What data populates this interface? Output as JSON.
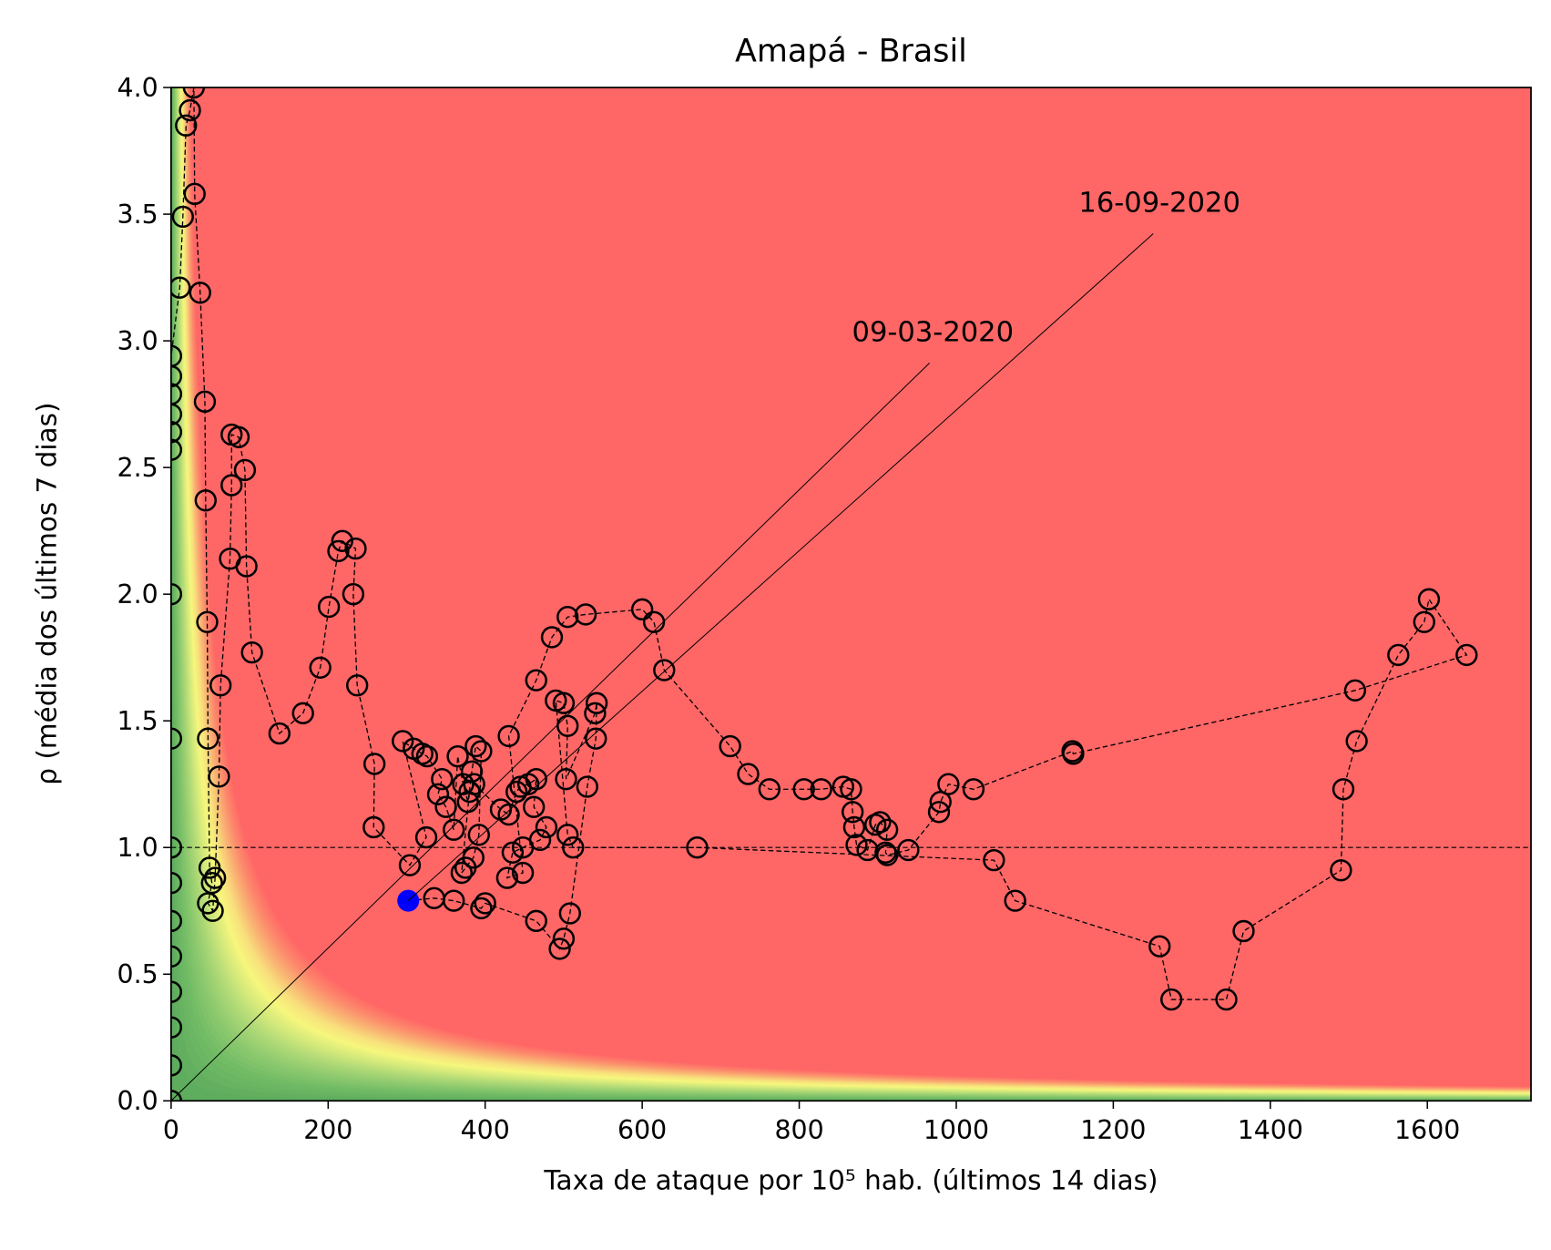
{
  "chart_data": {
    "type": "line",
    "title": "Amapá - Brasil",
    "xlabel": "Taxa de ataque por 10⁵ hab. (últimos 14 dias)",
    "ylabel": "ρ (média dos últimos 7 dias)",
    "xlim": [
      0,
      1732
    ],
    "ylim": [
      0,
      4
    ],
    "xticks": [
      0,
      200,
      400,
      600,
      800,
      1000,
      1200,
      1400,
      1600
    ],
    "yticks": [
      {
        "value": 0,
        "label": "0.0"
      },
      0.5,
      {
        "value": 1,
        "label": "1.0"
      },
      1.5,
      {
        "value": 2,
        "label": "2.0"
      },
      2.5,
      {
        "value": 3,
        "label": "3.0"
      },
      3.5,
      {
        "value": 4,
        "label": "4.0"
      }
    ],
    "hline": 1,
    "last_point_color": "#0000ff",
    "series": [
      {
        "color": "#000000",
        "x": [
          0,
          0,
          0,
          0,
          0,
          0,
          0,
          0,
          0,
          0,
          0,
          0,
          0,
          0,
          0,
          0,
          11,
          15,
          19,
          24,
          29,
          30,
          37,
          43,
          44,
          46,
          47,
          49,
          52,
          47,
          53,
          56,
          61,
          63,
          75,
          77,
          77,
          86,
          94,
          96,
          103,
          138,
          168,
          190,
          201,
          213,
          218,
          235,
          232,
          237,
          259,
          258,
          304,
          325,
          295,
          309,
          320,
          326,
          345,
          340,
          350,
          360,
          365,
          372,
          378,
          383,
          388,
          395,
          392,
          385,
          375,
          370,
          380,
          386,
          420,
          430,
          440,
          445,
          455,
          465,
          462,
          478,
          470,
          448,
          435,
          428,
          448,
          430,
          465,
          485,
          505,
          528,
          600,
          615,
          628,
          712,
          735,
          762,
          806,
          828,
          856,
          866,
          868,
          870,
          873,
          887,
          897,
          903,
          912,
          910,
          912,
          939,
          978,
          980,
          990,
          1022,
          1148,
          1149,
          1508,
          1650,
          1602,
          1596,
          1563,
          1510,
          1493,
          1490,
          1366,
          1344,
          1274,
          1259,
          1075,
          1048,
          670,
          512,
          505,
          490,
          500,
          505,
          503,
          540,
          542,
          541,
          530,
          508,
          500,
          495,
          465,
          400,
          395,
          360,
          335,
          302
        ],
        "values": [
          0,
          0.14,
          0.29,
          0.43,
          0.57,
          0.71,
          0.86,
          1.0,
          1.43,
          2.0,
          2.57,
          2.64,
          2.71,
          2.79,
          2.86,
          2.94,
          3.21,
          3.49,
          3.85,
          3.91,
          4.0,
          3.58,
          3.19,
          2.76,
          2.37,
          1.89,
          1.43,
          0.92,
          0.86,
          0.78,
          0.75,
          0.88,
          1.28,
          1.64,
          2.14,
          2.43,
          2.63,
          2.62,
          2.49,
          2.11,
          1.77,
          1.45,
          1.53,
          1.71,
          1.95,
          2.17,
          2.21,
          2.18,
          2.0,
          1.64,
          1.33,
          1.08,
          0.93,
          1.04,
          1.42,
          1.39,
          1.37,
          1.36,
          1.27,
          1.21,
          1.16,
          1.07,
          1.36,
          1.25,
          1.18,
          1.3,
          1.4,
          1.38,
          1.05,
          0.96,
          0.92,
          0.9,
          1.22,
          1.25,
          1.15,
          1.13,
          1.22,
          1.24,
          1.25,
          1.27,
          1.16,
          1.08,
          1.03,
          1.0,
          0.98,
          0.88,
          0.9,
          1.44,
          1.66,
          1.83,
          1.91,
          1.92,
          1.94,
          1.89,
          1.7,
          1.4,
          1.29,
          1.23,
          1.23,
          1.23,
          1.24,
          1.23,
          1.14,
          1.08,
          1.01,
          0.99,
          1.09,
          1.1,
          1.07,
          0.98,
          0.97,
          0.99,
          1.14,
          1.18,
          1.25,
          1.23,
          1.38,
          1.37,
          1.62,
          1.76,
          1.98,
          1.89,
          1.76,
          1.42,
          1.23,
          0.91,
          0.67,
          0.4,
          0.4,
          0.61,
          0.79,
          0.95,
          1.0,
          1.0,
          1.05,
          1.58,
          1.57,
          1.48,
          1.27,
          1.53,
          1.57,
          1.43,
          1.24,
          0.74,
          0.64,
          0.6,
          0.71,
          0.78,
          0.76,
          0.79,
          0.8,
          0.79
        ]
      }
    ],
    "annotations": [
      {
        "text": "09-03-2020",
        "x": 0,
        "y": 0
      },
      {
        "text": "16-09-2020",
        "x": 302,
        "y": 0.79
      }
    ]
  }
}
